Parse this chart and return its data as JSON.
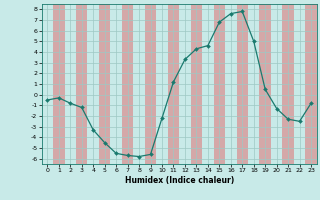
{
  "x": [
    0,
    1,
    2,
    3,
    4,
    5,
    6,
    7,
    8,
    9,
    10,
    11,
    12,
    13,
    14,
    15,
    16,
    17,
    18,
    19,
    20,
    21,
    22,
    23
  ],
  "y": [
    -0.5,
    -0.3,
    -0.8,
    -1.2,
    -3.3,
    -4.5,
    -5.5,
    -5.7,
    -5.8,
    -5.6,
    -2.2,
    1.2,
    3.3,
    4.3,
    4.6,
    6.8,
    7.6,
    7.8,
    5.0,
    0.5,
    -1.3,
    -2.3,
    -2.5,
    -0.8
  ],
  "xlabel": "Humidex (Indice chaleur)",
  "ylim": [
    -6.5,
    8.5
  ],
  "xlim": [
    -0.5,
    23.5
  ],
  "yticks": [
    -6,
    -5,
    -4,
    -3,
    -2,
    -1,
    0,
    1,
    2,
    3,
    4,
    5,
    6,
    7,
    8
  ],
  "xticks": [
    0,
    1,
    2,
    3,
    4,
    5,
    6,
    7,
    8,
    9,
    10,
    11,
    12,
    13,
    14,
    15,
    16,
    17,
    18,
    19,
    20,
    21,
    22,
    23
  ],
  "line_color": "#1a7a6e",
  "marker_color": "#1a7a6e",
  "bg_color": "#c8eae8",
  "grid_teal": "#9ec8c4",
  "grid_pink": "#d4a8a8"
}
